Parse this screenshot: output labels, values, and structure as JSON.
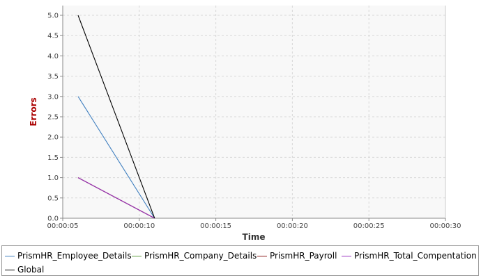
{
  "chart_data": {
    "type": "line",
    "title": "",
    "xlabel": "Time",
    "ylabel": "Errors",
    "xlim": [
      "00:00:05",
      "00:00:30"
    ],
    "ylim": [
      0,
      5.0
    ],
    "x_ticks": [
      "00:00:05",
      "00:00:10",
      "00:00:15",
      "00:00:20",
      "00:00:25",
      "00:00:30"
    ],
    "y_ticks": [
      "0.0",
      "0.5",
      "1.0",
      "1.5",
      "2.0",
      "2.5",
      "3.0",
      "3.5",
      "4.0",
      "4.5",
      "5.0"
    ],
    "grid": true,
    "legend_position": "bottom",
    "series": [
      {
        "name": "PrismHR_Employee_Details",
        "color": "#3f7fbf",
        "points": [
          [
            "00:00:06",
            3
          ],
          [
            "00:00:11",
            0
          ]
        ]
      },
      {
        "name": "PrismHR_Company_Details",
        "color": "#5f9f3f",
        "points": [
          [
            "00:00:06",
            1
          ],
          [
            "00:00:11",
            0
          ]
        ]
      },
      {
        "name": "PrismHR_Payroll",
        "color": "#8b1a1a",
        "points": [
          [
            "00:00:06",
            1
          ],
          [
            "00:00:11",
            0
          ]
        ]
      },
      {
        "name": "PrismHR_Total_Compentation",
        "color": "#9b30c0",
        "points": [
          [
            "00:00:06",
            1
          ],
          [
            "00:00:11",
            0
          ]
        ]
      },
      {
        "name": "Global",
        "color": "#000000",
        "points": [
          [
            "00:00:06",
            5
          ],
          [
            "00:00:11",
            0
          ]
        ]
      }
    ]
  }
}
